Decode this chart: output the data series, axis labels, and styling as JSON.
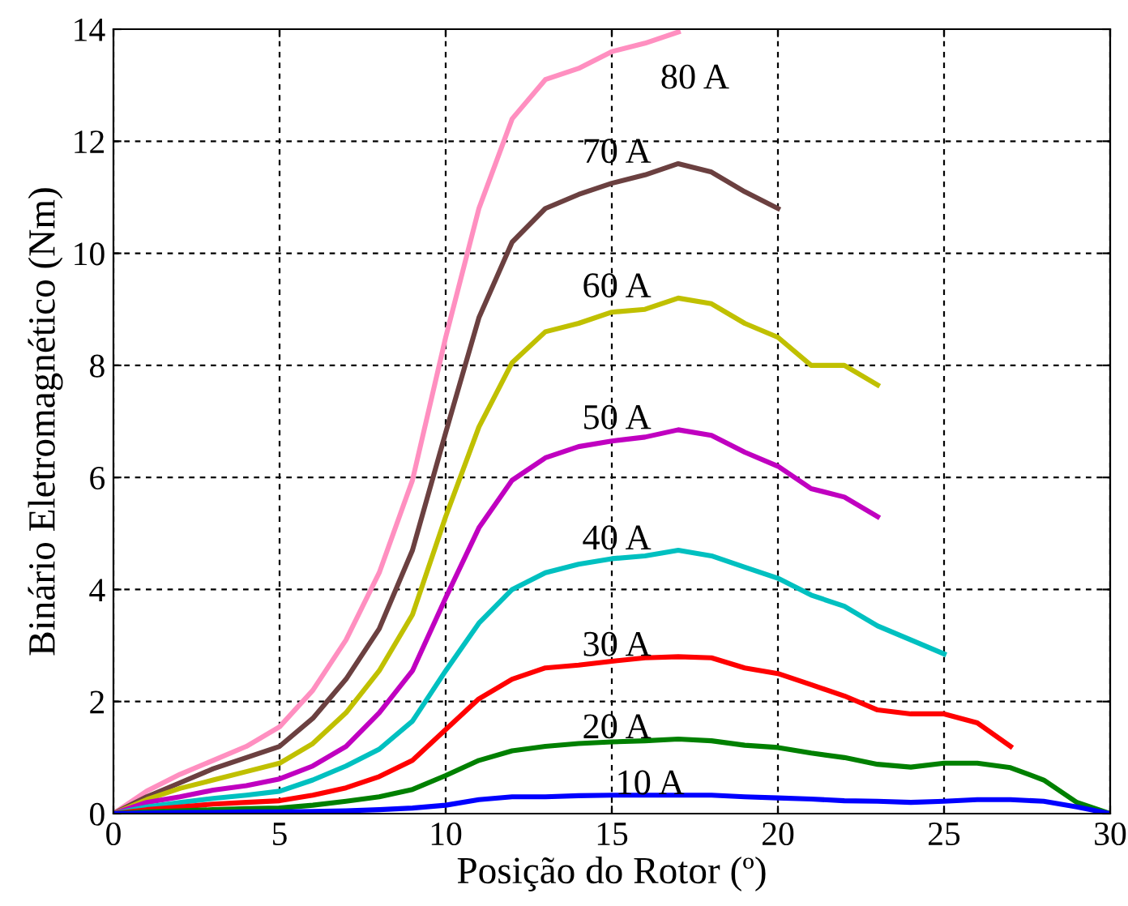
{
  "chart_data": {
    "type": "line",
    "xlabel": "Posição do Rotor (º)",
    "ylabel": "Binário Eletromagnético (Nm)",
    "xlim": [
      0,
      30
    ],
    "ylim": [
      0,
      14
    ],
    "xticks": [
      0,
      5,
      10,
      15,
      20,
      25,
      30
    ],
    "yticks": [
      0,
      2,
      4,
      6,
      8,
      10,
      12,
      14
    ],
    "grid": true,
    "line_style": "solid",
    "marker": "none",
    "series": [
      {
        "name": "80 A",
        "color": "#ff8fc0",
        "x": [
          0,
          1,
          2,
          3,
          4,
          5,
          6,
          7,
          8,
          9,
          10,
          11,
          12,
          13,
          14,
          15,
          16,
          17
        ],
        "values": [
          0,
          0.4,
          0.7,
          0.95,
          1.2,
          1.55,
          2.2,
          3.1,
          4.3,
          5.95,
          8.5,
          10.8,
          12.4,
          13.1,
          13.3,
          13.6,
          13.75,
          13.95
        ]
      },
      {
        "name": "70 A",
        "color": "#6b4040",
        "x": [
          0,
          1,
          2,
          3,
          4,
          5,
          6,
          7,
          8,
          9,
          10,
          11,
          12,
          13,
          14,
          15,
          16,
          17,
          18,
          19,
          20
        ],
        "values": [
          0,
          0.3,
          0.55,
          0.8,
          1.0,
          1.2,
          1.7,
          2.4,
          3.3,
          4.7,
          6.8,
          8.85,
          10.2,
          10.8,
          11.05,
          11.25,
          11.4,
          11.6,
          11.45,
          11.1,
          10.8
        ]
      },
      {
        "name": "60 A",
        "color": "#c0c000",
        "x": [
          0,
          1,
          2,
          3,
          4,
          5,
          6,
          7,
          8,
          9,
          10,
          11,
          12,
          13,
          14,
          15,
          16,
          17,
          18,
          19,
          20,
          21,
          22,
          23
        ],
        "values": [
          0,
          0.25,
          0.45,
          0.6,
          0.75,
          0.9,
          1.25,
          1.8,
          2.55,
          3.55,
          5.3,
          6.9,
          8.05,
          8.6,
          8.75,
          8.95,
          9.0,
          9.2,
          9.1,
          8.75,
          8.5,
          8.0,
          8.0,
          7.65
        ]
      },
      {
        "name": "50 A",
        "color": "#c000c0",
        "x": [
          0,
          1,
          2,
          3,
          4,
          5,
          6,
          7,
          8,
          9,
          10,
          11,
          12,
          13,
          14,
          15,
          16,
          17,
          18,
          19,
          20,
          21,
          22,
          23
        ],
        "values": [
          0,
          0.2,
          0.3,
          0.42,
          0.5,
          0.62,
          0.85,
          1.2,
          1.8,
          2.55,
          3.85,
          5.1,
          5.95,
          6.35,
          6.55,
          6.65,
          6.72,
          6.85,
          6.75,
          6.45,
          6.2,
          5.8,
          5.65,
          5.3
        ]
      },
      {
        "name": "40 A",
        "color": "#00c0c0",
        "x": [
          0,
          1,
          2,
          3,
          4,
          5,
          6,
          7,
          8,
          9,
          10,
          11,
          12,
          13,
          14,
          15,
          16,
          17,
          18,
          19,
          20,
          21,
          22,
          23,
          24,
          25
        ],
        "values": [
          0,
          0.12,
          0.2,
          0.27,
          0.33,
          0.4,
          0.6,
          0.85,
          1.15,
          1.65,
          2.55,
          3.4,
          4.0,
          4.3,
          4.45,
          4.55,
          4.6,
          4.7,
          4.6,
          4.4,
          4.2,
          3.9,
          3.7,
          3.35,
          3.1,
          2.85
        ]
      },
      {
        "name": "30 A",
        "color": "#ff0000",
        "x": [
          0,
          1,
          2,
          3,
          4,
          5,
          6,
          7,
          8,
          9,
          10,
          11,
          12,
          13,
          14,
          15,
          16,
          17,
          18,
          19,
          20,
          21,
          22,
          23,
          24,
          25,
          26,
          27
        ],
        "values": [
          0,
          0.07,
          0.12,
          0.17,
          0.2,
          0.23,
          0.33,
          0.46,
          0.66,
          0.95,
          1.5,
          2.05,
          2.4,
          2.6,
          2.65,
          2.72,
          2.78,
          2.8,
          2.78,
          2.6,
          2.5,
          2.3,
          2.1,
          1.85,
          1.78,
          1.78,
          1.62,
          1.2
        ]
      },
      {
        "name": "20 A",
        "color": "#008000",
        "x": [
          0,
          1,
          2,
          3,
          4,
          5,
          6,
          7,
          8,
          9,
          10,
          11,
          12,
          13,
          14,
          15,
          16,
          17,
          18,
          19,
          20,
          21,
          22,
          23,
          24,
          25,
          26,
          27,
          28,
          29,
          30
        ],
        "values": [
          0,
          0.03,
          0.05,
          0.07,
          0.09,
          0.1,
          0.15,
          0.22,
          0.3,
          0.43,
          0.68,
          0.95,
          1.12,
          1.2,
          1.25,
          1.28,
          1.3,
          1.33,
          1.3,
          1.22,
          1.18,
          1.08,
          1.0,
          0.88,
          0.83,
          0.9,
          0.9,
          0.82,
          0.6,
          0.2,
          0
        ]
      },
      {
        "name": "10 A",
        "color": "#0000ff",
        "x": [
          0,
          1,
          2,
          3,
          4,
          5,
          6,
          7,
          8,
          9,
          10,
          11,
          12,
          13,
          14,
          15,
          16,
          17,
          18,
          19,
          20,
          21,
          22,
          23,
          24,
          25,
          26,
          27,
          28,
          29,
          30
        ],
        "values": [
          0,
          0.01,
          0.02,
          0.02,
          0.03,
          0.03,
          0.04,
          0.05,
          0.07,
          0.1,
          0.15,
          0.25,
          0.3,
          0.3,
          0.32,
          0.33,
          0.33,
          0.33,
          0.33,
          0.3,
          0.28,
          0.26,
          0.23,
          0.22,
          0.2,
          0.22,
          0.25,
          0.25,
          0.22,
          0.12,
          0
        ]
      }
    ]
  }
}
